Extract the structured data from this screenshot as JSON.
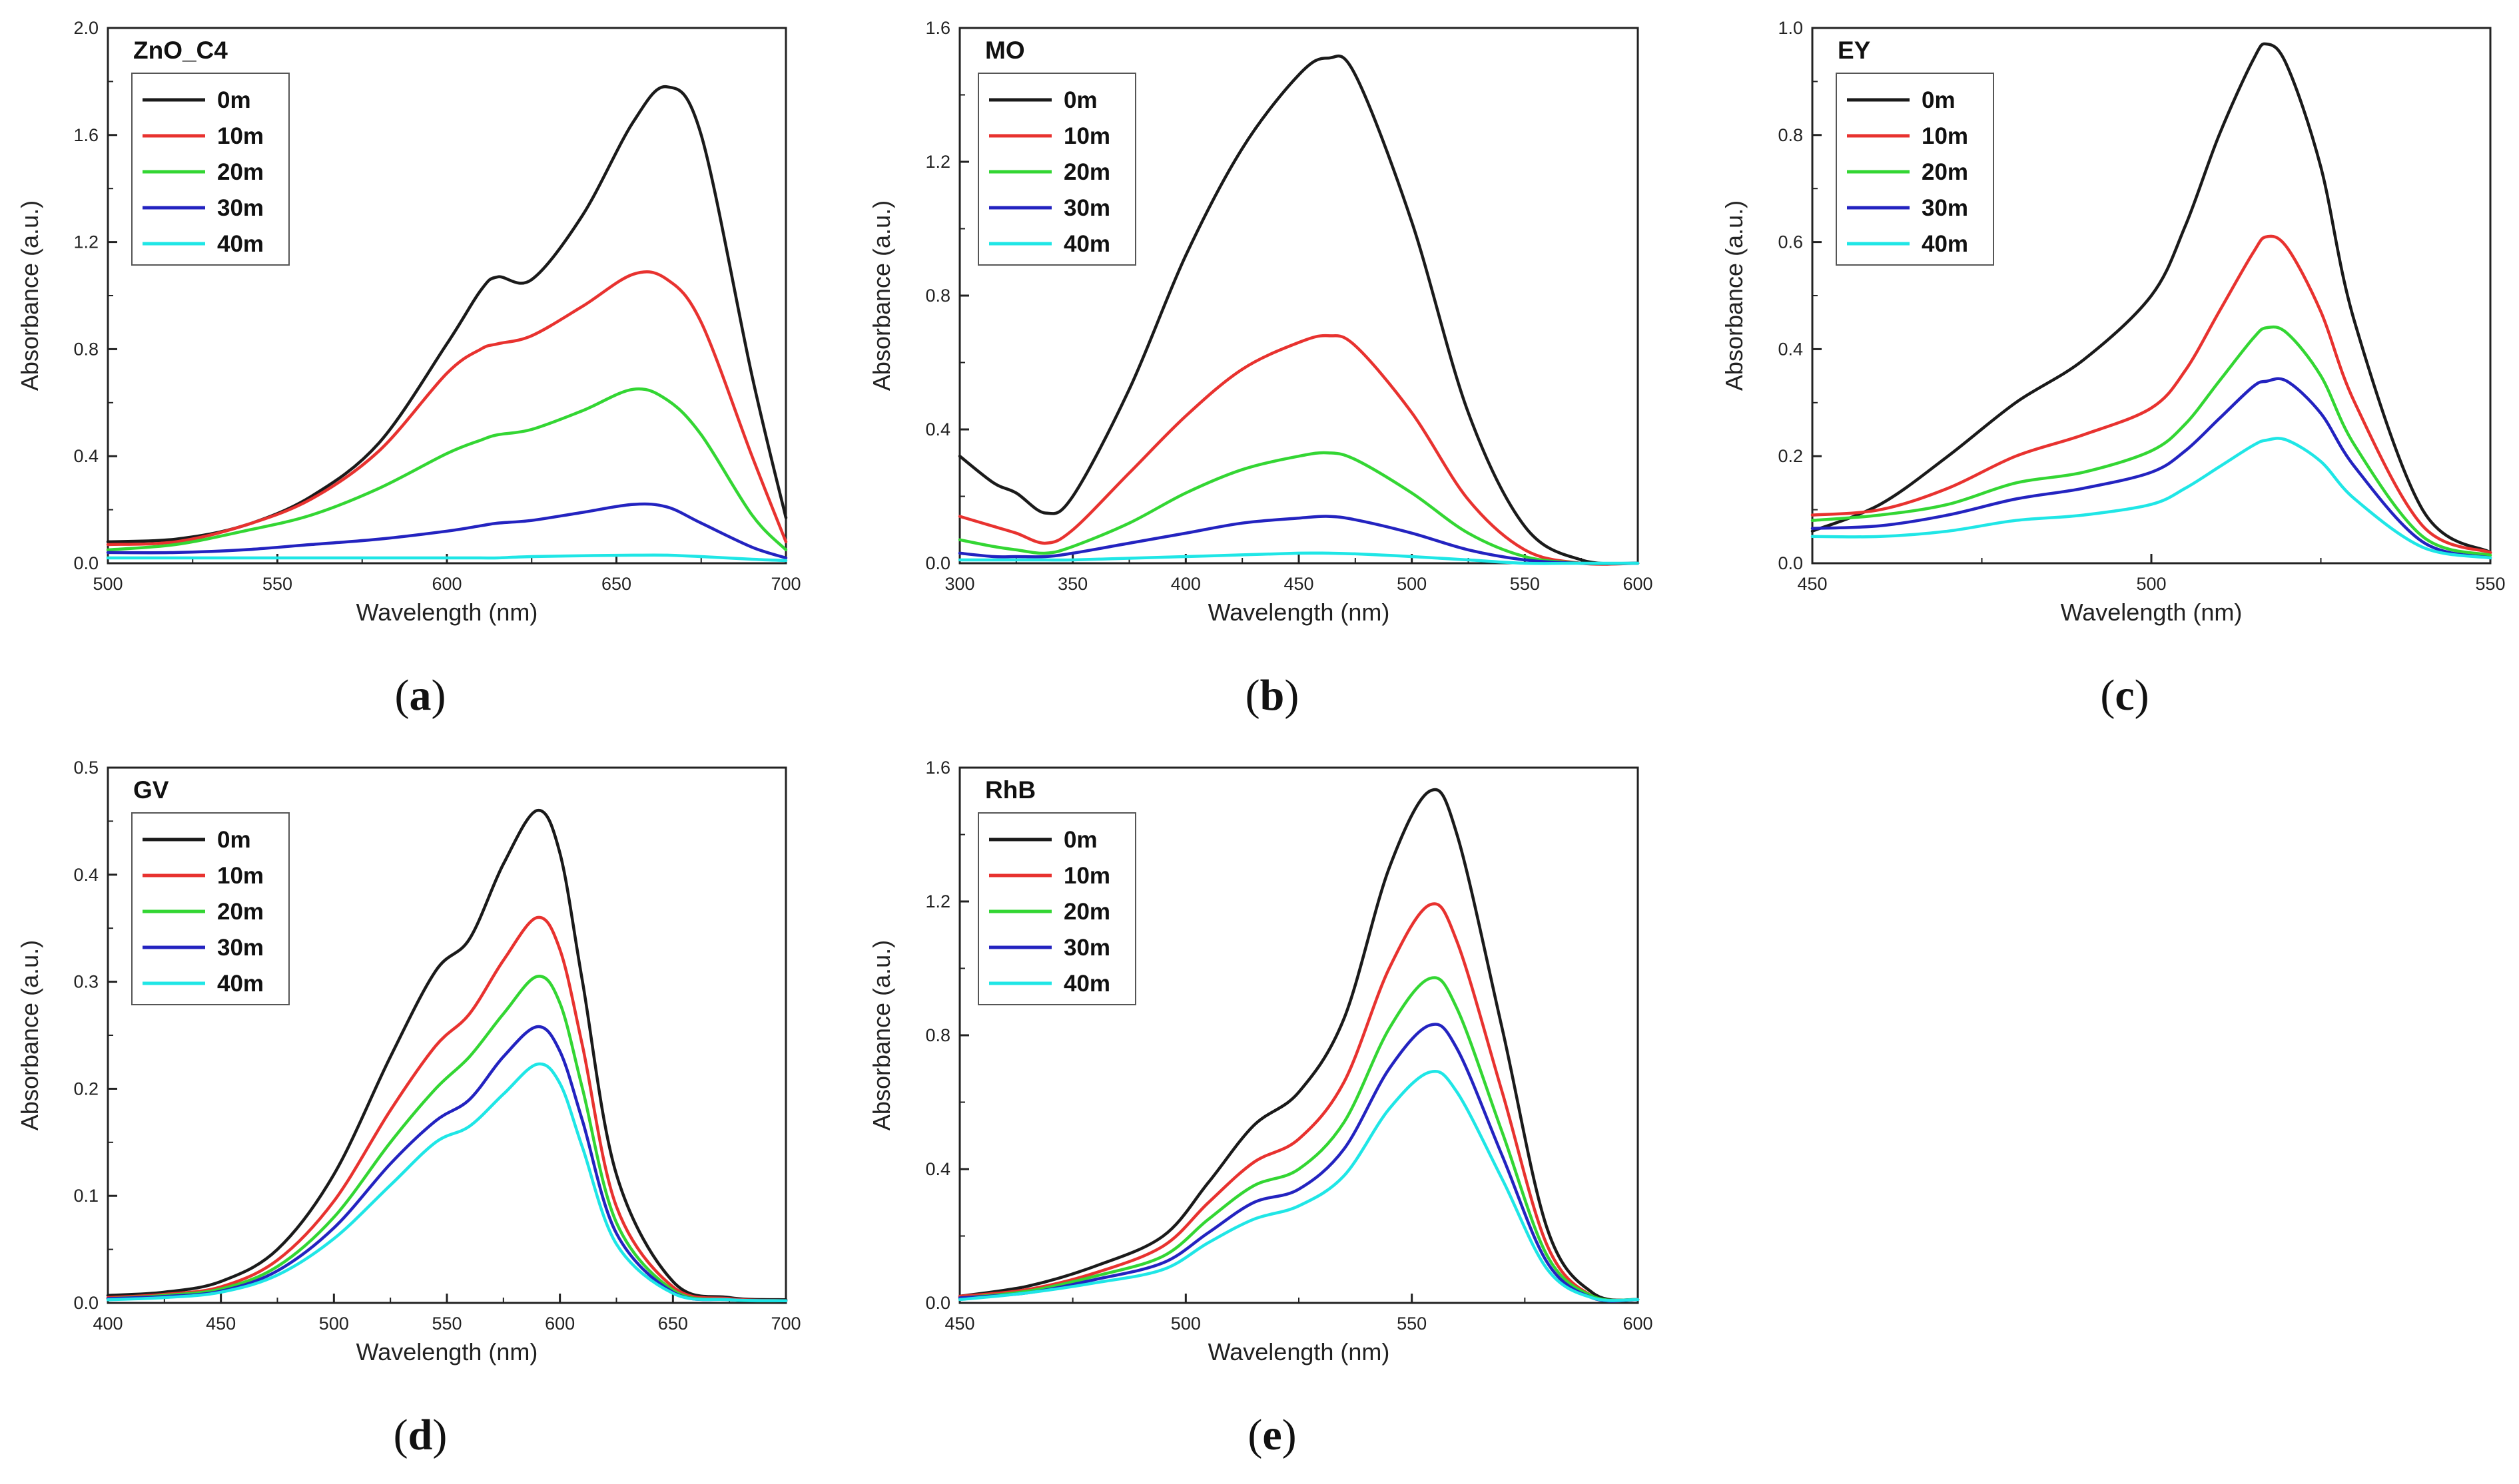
{
  "figure": {
    "series_names": [
      "0m",
      "10m",
      "20m",
      "30m",
      "40m"
    ],
    "series_colors": [
      "#1a1a1a",
      "#e8322f",
      "#33d633",
      "#2323c0",
      "#1fe6e6"
    ]
  },
  "chart_data": [
    {
      "type": "line",
      "panel_label": "a",
      "title": "ZnO_C4",
      "xlabel": "Wavelength (nm)",
      "ylabel": "Absorbance (a.u.)",
      "xlim": [
        500,
        700
      ],
      "ylim": [
        0,
        2.0
      ],
      "xticks": [
        500,
        550,
        600,
        650,
        700
      ],
      "yticks": [
        0.0,
        0.4,
        0.8,
        1.2,
        1.6,
        2.0
      ],
      "x": [
        500,
        520,
        540,
        560,
        580,
        600,
        610,
        615,
        625,
        640,
        655,
        665,
        675,
        690,
        700
      ],
      "series": [
        {
          "name": "0m",
          "values": [
            0.08,
            0.09,
            0.14,
            0.25,
            0.45,
            0.82,
            1.02,
            1.07,
            1.06,
            1.3,
            1.65,
            1.78,
            1.6,
            0.7,
            0.17
          ]
        },
        {
          "name": "10m",
          "values": [
            0.07,
            0.08,
            0.14,
            0.24,
            0.42,
            0.71,
            0.8,
            0.82,
            0.85,
            0.96,
            1.08,
            1.06,
            0.9,
            0.4,
            0.08
          ]
        },
        {
          "name": "20m",
          "values": [
            0.05,
            0.07,
            0.12,
            0.18,
            0.28,
            0.41,
            0.46,
            0.48,
            0.5,
            0.57,
            0.65,
            0.61,
            0.48,
            0.18,
            0.05
          ]
        },
        {
          "name": "30m",
          "values": [
            0.04,
            0.04,
            0.05,
            0.07,
            0.09,
            0.12,
            0.14,
            0.15,
            0.16,
            0.19,
            0.22,
            0.21,
            0.15,
            0.06,
            0.02
          ]
        },
        {
          "name": "40m",
          "values": [
            0.02,
            0.02,
            0.02,
            0.02,
            0.02,
            0.02,
            0.02,
            0.02,
            0.025,
            0.028,
            0.03,
            0.03,
            0.025,
            0.015,
            0.01
          ]
        }
      ]
    },
    {
      "type": "line",
      "panel_label": "b",
      "title": "MO",
      "xlabel": "Wavelength (nm)",
      "ylabel": "Absorbance (a.u.)",
      "xlim": [
        300,
        600
      ],
      "ylim": [
        0,
        1.6
      ],
      "xticks": [
        300,
        350,
        400,
        450,
        500,
        550,
        600
      ],
      "yticks": [
        0.0,
        0.4,
        0.8,
        1.2,
        1.6
      ],
      "x": [
        300,
        315,
        325,
        338,
        350,
        375,
        400,
        425,
        450,
        463,
        475,
        500,
        525,
        550,
        575,
        600
      ],
      "series": [
        {
          "name": "0m",
          "values": [
            0.32,
            0.24,
            0.21,
            0.15,
            0.2,
            0.52,
            0.92,
            1.24,
            1.46,
            1.51,
            1.46,
            1.02,
            0.45,
            0.11,
            0.01,
            0.0
          ]
        },
        {
          "name": "10m",
          "values": [
            0.14,
            0.11,
            0.09,
            0.06,
            0.1,
            0.27,
            0.44,
            0.58,
            0.66,
            0.68,
            0.65,
            0.45,
            0.19,
            0.04,
            0.0,
            0.0
          ]
        },
        {
          "name": "20m",
          "values": [
            0.07,
            0.05,
            0.04,
            0.03,
            0.05,
            0.12,
            0.21,
            0.28,
            0.32,
            0.33,
            0.31,
            0.21,
            0.09,
            0.02,
            0.0,
            0.0
          ]
        },
        {
          "name": "30m",
          "values": [
            0.03,
            0.02,
            0.02,
            0.02,
            0.03,
            0.06,
            0.09,
            0.12,
            0.135,
            0.14,
            0.13,
            0.09,
            0.04,
            0.01,
            0.0,
            0.0
          ]
        },
        {
          "name": "40m",
          "values": [
            0.01,
            0.01,
            0.01,
            0.01,
            0.01,
            0.015,
            0.02,
            0.025,
            0.03,
            0.03,
            0.028,
            0.02,
            0.01,
            0.0,
            0.0,
            0.0
          ]
        }
      ]
    },
    {
      "type": "line",
      "panel_label": "c",
      "title": "EY",
      "xlabel": "Wavelength (nm)",
      "ylabel": "Absorbance (a.u.)",
      "xlim": [
        450,
        550
      ],
      "ylim": [
        0,
        1.0
      ],
      "xticks": [
        450,
        500,
        550
      ],
      "yticks": [
        0.0,
        0.2,
        0.4,
        0.6,
        0.8,
        1.0
      ],
      "x": [
        450,
        460,
        470,
        480,
        490,
        500,
        505,
        510,
        515,
        517,
        520,
        525,
        530,
        540,
        550
      ],
      "series": [
        {
          "name": "0m",
          "values": [
            0.06,
            0.11,
            0.2,
            0.3,
            0.38,
            0.5,
            0.63,
            0.8,
            0.94,
            0.97,
            0.93,
            0.74,
            0.45,
            0.1,
            0.02
          ]
        },
        {
          "name": "10m",
          "values": [
            0.09,
            0.1,
            0.14,
            0.2,
            0.24,
            0.29,
            0.36,
            0.47,
            0.58,
            0.61,
            0.59,
            0.47,
            0.3,
            0.07,
            0.02
          ]
        },
        {
          "name": "20m",
          "values": [
            0.08,
            0.09,
            0.11,
            0.15,
            0.17,
            0.21,
            0.26,
            0.34,
            0.42,
            0.44,
            0.43,
            0.35,
            0.22,
            0.05,
            0.015
          ]
        },
        {
          "name": "30m",
          "values": [
            0.065,
            0.07,
            0.09,
            0.12,
            0.14,
            0.17,
            0.21,
            0.27,
            0.33,
            0.34,
            0.34,
            0.28,
            0.18,
            0.04,
            0.01
          ]
        },
        {
          "name": "40m",
          "values": [
            0.05,
            0.05,
            0.06,
            0.08,
            0.09,
            0.11,
            0.14,
            0.18,
            0.22,
            0.23,
            0.23,
            0.19,
            0.12,
            0.03,
            0.01
          ]
        }
      ]
    },
    {
      "type": "line",
      "panel_label": "d",
      "title": "GV",
      "xlabel": "Wavelength (nm)",
      "ylabel": "Absorbance (a.u.)",
      "xlim": [
        400,
        700
      ],
      "ylim": [
        0,
        0.5
      ],
      "xticks": [
        400,
        450,
        500,
        550,
        600,
        650,
        700
      ],
      "yticks": [
        0.0,
        0.1,
        0.2,
        0.3,
        0.4,
        0.5
      ],
      "x": [
        400,
        425,
        450,
        475,
        500,
        525,
        545,
        560,
        575,
        590,
        600,
        610,
        625,
        650,
        675,
        700
      ],
      "series": [
        {
          "name": "0m",
          "values": [
            0.007,
            0.01,
            0.02,
            0.05,
            0.12,
            0.23,
            0.31,
            0.34,
            0.41,
            0.46,
            0.42,
            0.3,
            0.12,
            0.02,
            0.005,
            0.003
          ]
        },
        {
          "name": "10m",
          "values": [
            0.005,
            0.008,
            0.015,
            0.04,
            0.095,
            0.18,
            0.24,
            0.27,
            0.32,
            0.36,
            0.33,
            0.24,
            0.09,
            0.015,
            0.004,
            0.002
          ]
        },
        {
          "name": "20m",
          "values": [
            0.004,
            0.007,
            0.013,
            0.034,
            0.08,
            0.15,
            0.2,
            0.23,
            0.27,
            0.305,
            0.28,
            0.2,
            0.075,
            0.012,
            0.003,
            0.002
          ]
        },
        {
          "name": "30m",
          "values": [
            0.004,
            0.006,
            0.011,
            0.03,
            0.07,
            0.13,
            0.17,
            0.19,
            0.23,
            0.258,
            0.235,
            0.17,
            0.065,
            0.01,
            0.003,
            0.002
          ]
        },
        {
          "name": "40m",
          "values": [
            0.003,
            0.005,
            0.01,
            0.026,
            0.06,
            0.11,
            0.15,
            0.165,
            0.195,
            0.223,
            0.205,
            0.145,
            0.055,
            0.009,
            0.003,
            0.002
          ]
        }
      ]
    },
    {
      "type": "line",
      "panel_label": "e",
      "title": "RhB",
      "xlabel": "Wavelength (nm)",
      "ylabel": "Absorbance (a.u.)",
      "xlim": [
        450,
        600
      ],
      "ylim": [
        0,
        1.6
      ],
      "xticks": [
        450,
        500,
        550,
        600
      ],
      "yticks": [
        0.0,
        0.4,
        0.8,
        1.2,
        1.6
      ],
      "x": [
        450,
        465,
        480,
        495,
        505,
        515,
        525,
        535,
        545,
        554,
        560,
        570,
        580,
        590,
        600
      ],
      "series": [
        {
          "name": "0m",
          "values": [
            0.02,
            0.05,
            0.11,
            0.2,
            0.36,
            0.53,
            0.63,
            0.85,
            1.3,
            1.53,
            1.4,
            0.82,
            0.22,
            0.03,
            0.01
          ]
        },
        {
          "name": "10m",
          "values": [
            0.02,
            0.04,
            0.09,
            0.17,
            0.3,
            0.42,
            0.49,
            0.66,
            1.0,
            1.19,
            1.08,
            0.63,
            0.17,
            0.02,
            0.01
          ]
        },
        {
          "name": "20m",
          "values": [
            0.015,
            0.035,
            0.08,
            0.14,
            0.25,
            0.35,
            0.4,
            0.54,
            0.82,
            0.97,
            0.88,
            0.51,
            0.14,
            0.02,
            0.01
          ]
        },
        {
          "name": "30m",
          "values": [
            0.015,
            0.03,
            0.07,
            0.12,
            0.21,
            0.3,
            0.34,
            0.46,
            0.7,
            0.83,
            0.76,
            0.44,
            0.12,
            0.015,
            0.01
          ]
        },
        {
          "name": "40m",
          "values": [
            0.01,
            0.03,
            0.06,
            0.1,
            0.18,
            0.25,
            0.29,
            0.38,
            0.58,
            0.69,
            0.63,
            0.37,
            0.1,
            0.015,
            0.01
          ]
        }
      ]
    }
  ]
}
